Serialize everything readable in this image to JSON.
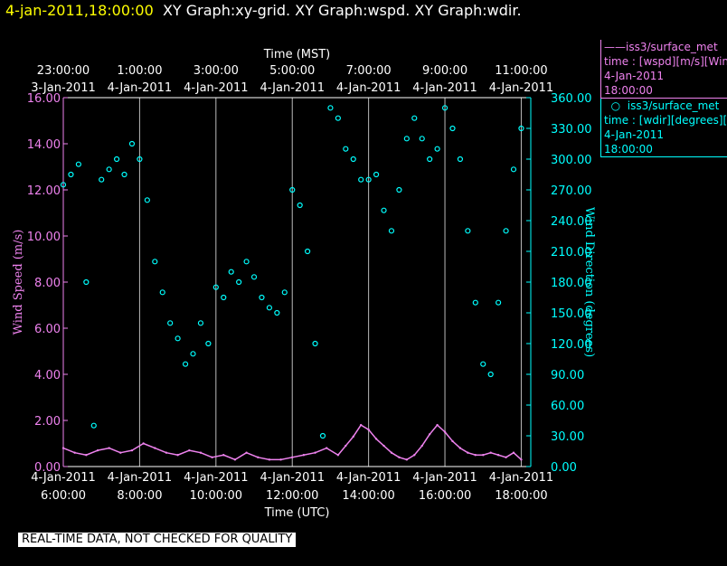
{
  "header": {
    "timestamp": "4-jan-2011,18:00:00",
    "graphs": "XY Graph:xy-grid.  XY Graph:wspd.  XY Graph:wdir."
  },
  "legend": {
    "wspd": {
      "line1": "iss3/surface_met",
      "line2": "time : [wspd][m/s][Wind",
      "line3": "4-Jan-2011",
      "line4": "18:00:00"
    },
    "wdir": {
      "line1": "iss3/surface_met",
      "line2": "time : [wdir][degrees][W",
      "line3": "4-Jan-2011",
      "line4": "18:00:00"
    }
  },
  "footer": {
    "text": "REAL-TIME DATA, NOT CHECKED FOR QUALITY"
  },
  "colors": {
    "wspd": "#ee82ee",
    "wdir": "#00ffff",
    "axis": "#ffffff",
    "background": "#000000"
  },
  "chart_data": {
    "type": "scatter",
    "top_axis_title": "Time (MST)",
    "bottom_axis_title": "Time (UTC)",
    "ylabel_left": "Wind Speed (m/s)",
    "ylabel_right": "Wind Direction (degrees)",
    "xlim_utc_hours": [
      6,
      18.25
    ],
    "ylim_left": [
      0,
      16
    ],
    "ylim_right": [
      0,
      360
    ],
    "bottom_ticks": [
      {
        "hour": 6,
        "date": "4-Jan-2011",
        "time": "6:00:00"
      },
      {
        "hour": 8,
        "date": "4-Jan-2011",
        "time": "8:00:00"
      },
      {
        "hour": 10,
        "date": "4-Jan-2011",
        "time": "10:00:00"
      },
      {
        "hour": 12,
        "date": "4-Jan-2011",
        "time": "12:00:00"
      },
      {
        "hour": 14,
        "date": "4-Jan-2011",
        "time": "14:00:00"
      },
      {
        "hour": 16,
        "date": "4-Jan-2011",
        "time": "16:00:00"
      },
      {
        "hour": 18,
        "date": "4-Jan-2011",
        "time": "18:00:00"
      }
    ],
    "top_ticks": [
      {
        "hour": 6,
        "time": "23:00:00",
        "date": "3-Jan-2011"
      },
      {
        "hour": 8,
        "time": "1:00:00",
        "date": "4-Jan-2011"
      },
      {
        "hour": 10,
        "time": "3:00:00",
        "date": "4-Jan-2011"
      },
      {
        "hour": 12,
        "time": "5:00:00",
        "date": "4-Jan-2011"
      },
      {
        "hour": 14,
        "time": "7:00:00",
        "date": "4-Jan-2011"
      },
      {
        "hour": 16,
        "time": "9:00:00",
        "date": "4-Jan-2011"
      },
      {
        "hour": 18,
        "time": "11:00:00",
        "date": "4-Jan-2011"
      }
    ],
    "left_ticks": [
      "0.00",
      "2.00",
      "4.00",
      "6.00",
      "8.00",
      "10.00",
      "12.00",
      "14.00",
      "16.00"
    ],
    "right_ticks": [
      "0.00",
      "30.00",
      "60.00",
      "90.00",
      "120.00",
      "150.00",
      "180.00",
      "210.00",
      "240.00",
      "270.00",
      "300.00",
      "330.00",
      "360.00"
    ],
    "vertical_gridlines_utc_hours": [
      8,
      10,
      12,
      14,
      16,
      18
    ],
    "series": [
      {
        "name": "iss3/surface_met",
        "axis": "left",
        "style": "line",
        "x": [
          6.0,
          6.3,
          6.6,
          6.9,
          7.2,
          7.5,
          7.8,
          8.1,
          8.4,
          8.7,
          9.0,
          9.3,
          9.6,
          9.9,
          10.2,
          10.5,
          10.8,
          11.1,
          11.4,
          11.7,
          12.0,
          12.3,
          12.6,
          12.9,
          13.2,
          13.4,
          13.6,
          13.8,
          14.0,
          14.2,
          14.4,
          14.6,
          14.8,
          15.0,
          15.2,
          15.4,
          15.6,
          15.8,
          16.0,
          16.2,
          16.4,
          16.6,
          16.8,
          17.0,
          17.2,
          17.4,
          17.6,
          17.8,
          18.0
        ],
        "y": [
          0.8,
          0.6,
          0.5,
          0.7,
          0.8,
          0.6,
          0.7,
          1.0,
          0.8,
          0.6,
          0.5,
          0.7,
          0.6,
          0.4,
          0.5,
          0.3,
          0.6,
          0.4,
          0.3,
          0.3,
          0.4,
          0.5,
          0.6,
          0.8,
          0.5,
          0.9,
          1.3,
          1.8,
          1.6,
          1.2,
          0.9,
          0.6,
          0.4,
          0.3,
          0.5,
          0.9,
          1.4,
          1.8,
          1.5,
          1.1,
          0.8,
          0.6,
          0.5,
          0.5,
          0.6,
          0.5,
          0.4,
          0.6,
          0.3
        ]
      },
      {
        "name": "iss3/surface_met",
        "axis": "right",
        "style": "circles",
        "x": [
          6.0,
          6.2,
          6.4,
          6.6,
          6.8,
          7.0,
          7.2,
          7.4,
          7.6,
          7.8,
          8.0,
          8.2,
          8.4,
          8.6,
          8.8,
          9.0,
          9.2,
          9.4,
          9.6,
          9.8,
          10.0,
          10.2,
          10.4,
          10.6,
          10.8,
          11.0,
          11.2,
          11.4,
          11.6,
          11.8,
          12.0,
          12.2,
          12.4,
          12.6,
          12.8,
          13.0,
          13.2,
          13.4,
          13.6,
          13.8,
          14.0,
          14.2,
          14.4,
          14.6,
          14.8,
          15.0,
          15.2,
          15.4,
          15.6,
          15.8,
          16.0,
          16.2,
          16.4,
          16.6,
          16.8,
          17.0,
          17.2,
          17.4,
          17.6,
          17.8,
          18.0
        ],
        "y": [
          275,
          285,
          295,
          180,
          40,
          280,
          290,
          300,
          285,
          315,
          300,
          260,
          200,
          170,
          140,
          125,
          100,
          110,
          140,
          120,
          175,
          165,
          190,
          180,
          200,
          185,
          165,
          155,
          150,
          170,
          270,
          255,
          210,
          120,
          30,
          350,
          340,
          310,
          300,
          280,
          280,
          285,
          250,
          230,
          270,
          320,
          340,
          320,
          300,
          310,
          350,
          330,
          300,
          230,
          160,
          100,
          90,
          160,
          230,
          290,
          330
        ]
      }
    ]
  }
}
